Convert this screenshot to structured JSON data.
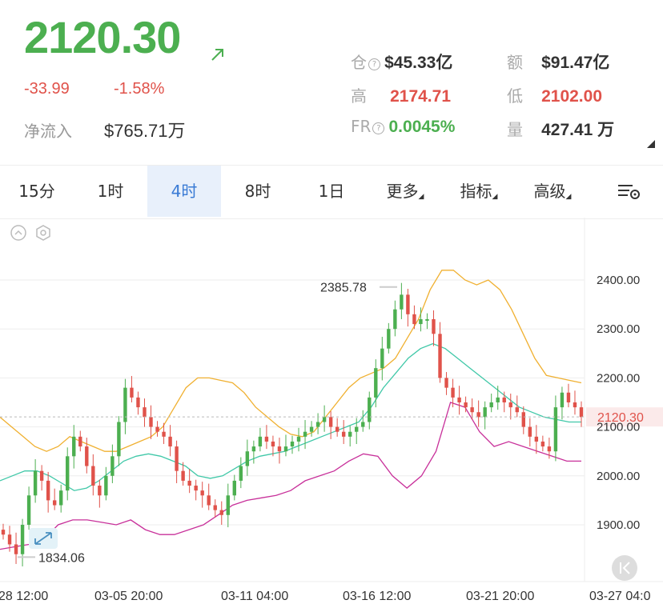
{
  "ticker": {
    "price": "2120.30",
    "change": "-33.99",
    "change_pct": "-1.58%",
    "net_inflow_label": "净流入",
    "net_inflow_value": "$765.71万"
  },
  "stats": {
    "position_label": "仓",
    "position_value": "$45.33亿",
    "amount_label": "额",
    "amount_value": "$91.47亿",
    "high_label": "高",
    "high_value": "2174.71",
    "low_label": "低",
    "low_value": "2102.00",
    "fr_label": "FR",
    "fr_value": "0.0045%",
    "volume_label": "量",
    "volume_value": "427.41 万"
  },
  "tabs": [
    {
      "label": "15分"
    },
    {
      "label": "1时"
    },
    {
      "label": "4时",
      "active": true
    },
    {
      "label": "8时"
    },
    {
      "label": "1日"
    },
    {
      "label": "更多"
    },
    {
      "label": "指标"
    },
    {
      "label": "高级"
    }
  ],
  "colors": {
    "up": "#4caf50",
    "down": "#e0524a",
    "accent": "#3a7bd5",
    "bb_upper": "#f0b030",
    "bb_mid": "#40c8a8",
    "bb_lower": "#c8309a"
  },
  "icons": [
    "collapse-icon",
    "settings-icon",
    "chart-settings-icon",
    "expand-icon",
    "skip-to-latest-icon"
  ],
  "chart_data": {
    "type": "candlestick",
    "y_ticks": [
      "2400.00",
      "2300.00",
      "2200.00",
      "2100.00",
      "2000.00",
      "1900.00"
    ],
    "ylim": [
      1820,
      2450
    ],
    "x_ticks": [
      "28 12:00",
      "03-05 20:00",
      "03-11 04:00",
      "03-16 12:00",
      "03-21 20:00",
      "03-27 04:0"
    ],
    "current_price_label": "2120.30",
    "current_price": 2120.3,
    "max_label": "2385.78",
    "min_label": "1834.06",
    "close_path": [
      1880,
      1860,
      1840,
      1900,
      1960,
      2010,
      1990,
      1950,
      1940,
      1970,
      2040,
      2080,
      2060,
      2020,
      1980,
      1960,
      2000,
      2040,
      2110,
      2180,
      2160,
      2140,
      2120,
      2100,
      2090,
      2080,
      2060,
      2010,
      1990,
      1980,
      1970,
      1960,
      1940,
      1930,
      1920,
      1960,
      1990,
      2020,
      2050,
      2060,
      2080,
      2070,
      2060,
      2050,
      2060,
      2070,
      2080,
      2090,
      2100,
      2110,
      2120,
      2100,
      2090,
      2080,
      2090,
      2100,
      2110,
      2160,
      2220,
      2260,
      2300,
      2340,
      2370,
      2330,
      2310,
      2320,
      2320,
      2290,
      2200,
      2180,
      2160,
      2150,
      2140,
      2130,
      2120,
      2140,
      2150,
      2160,
      2150,
      2140,
      2130,
      2100,
      2080,
      2070,
      2060,
      2050,
      2140,
      2170,
      2150,
      2140,
      2120
    ],
    "bb_upper": [
      2120,
      2100,
      2080,
      2060,
      2050,
      2060,
      2080,
      2070,
      2060,
      2050,
      2050,
      2060,
      2070,
      2080,
      2100,
      2140,
      2180,
      2200,
      2200,
      2195,
      2190,
      2170,
      2140,
      2120,
      2100,
      2085,
      2080,
      2090,
      2120,
      2150,
      2180,
      2200,
      2210,
      2220,
      2240,
      2280,
      2320,
      2380,
      2420,
      2420,
      2400,
      2390,
      2400,
      2380,
      2340,
      2290,
      2240,
      2205,
      2200,
      2195,
      2190
    ],
    "bb_mid": [
      1990,
      2000,
      2010,
      2010,
      2000,
      1985,
      1970,
      1975,
      1990,
      2010,
      2030,
      2040,
      2045,
      2040,
      2030,
      2020,
      2000,
      1995,
      2000,
      2015,
      2030,
      2040,
      2045,
      2050,
      2060,
      2070,
      2080,
      2090,
      2100,
      2110,
      2140,
      2180,
      2210,
      2240,
      2260,
      2270,
      2260,
      2240,
      2220,
      2200,
      2180,
      2160,
      2140,
      2130,
      2120,
      2115,
      2110,
      2110
    ],
    "bb_lower": [
      1850,
      1855,
      1860,
      1870,
      1900,
      1910,
      1910,
      1905,
      1900,
      1910,
      1890,
      1880,
      1880,
      1890,
      1900,
      1920,
      1940,
      1950,
      1955,
      1960,
      1970,
      1990,
      2000,
      2010,
      2030,
      2045,
      2040,
      2000,
      1975,
      2000,
      2050,
      2150,
      2140,
      2090,
      2060,
      2070,
      2060,
      2050,
      2040,
      2030,
      2030
    ]
  }
}
